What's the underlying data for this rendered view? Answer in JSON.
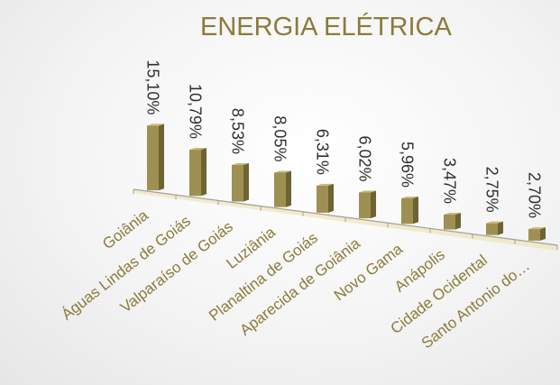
{
  "chart_data": {
    "type": "bar",
    "title": "ENERGIA ELÉTRICA",
    "categories": [
      "Goiânia",
      "Águas Lindas de Goiás",
      "Valparaíso de Goiás",
      "Luziânia",
      "Planaltina de Goiás",
      "Aparecida de Goiânia",
      "Novo Gama",
      "Anápolis",
      "Cidade Ocidental",
      "Santo Antonio do…"
    ],
    "values": [
      15.1,
      10.79,
      8.53,
      8.05,
      6.31,
      6.02,
      5.96,
      3.47,
      2.75,
      2.7
    ],
    "value_labels": [
      "15,10%",
      "10,79%",
      "8,53%",
      "8,05%",
      "6,31%",
      "6,02%",
      "5,96%",
      "3,47%",
      "2,75%",
      "2,70%"
    ],
    "ylim": [
      0,
      16
    ],
    "legend": "none",
    "grid": false,
    "colors": {
      "bar_front": "#9e9052",
      "bar_side": "#6e6432",
      "bar_top": "#c7b978",
      "floor": "#efe4b8",
      "axis": "#a0a0a0",
      "title": "#8b7b3a",
      "category_label": "#8b7b3a",
      "data_label": "#2f2f2f"
    }
  }
}
